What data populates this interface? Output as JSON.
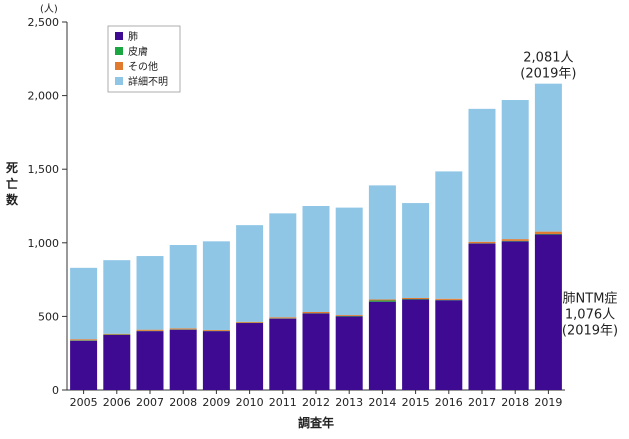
{
  "chart_data": {
    "type": "bar",
    "stacked": true,
    "categories": [
      "2005",
      "2006",
      "2007",
      "2008",
      "2009",
      "2010",
      "2011",
      "2012",
      "2013",
      "2014",
      "2015",
      "2016",
      "2017",
      "2018",
      "2019"
    ],
    "series": [
      {
        "name": "肺",
        "color": "#3d0a91",
        "values": [
          335,
          375,
          400,
          410,
          400,
          455,
          485,
          520,
          500,
          600,
          615,
          610,
          995,
          1010,
          1057
        ]
      },
      {
        "name": "皮膚",
        "color": "#1aa640",
        "values": [
          3,
          2,
          2,
          2,
          2,
          2,
          2,
          2,
          3,
          8,
          3,
          2,
          2,
          3,
          3
        ]
      },
      {
        "name": "その他",
        "color": "#e07a2e",
        "values": [
          7,
          5,
          8,
          7,
          6,
          6,
          7,
          8,
          6,
          7,
          7,
          8,
          10,
          12,
          16
        ]
      },
      {
        "name": "詳細不明",
        "color": "#8fc6e6",
        "values": [
          485,
          500,
          500,
          566,
          602,
          657,
          706,
          720,
          730,
          775,
          645,
          865,
          903,
          945,
          1005
        ]
      }
    ],
    "ylabel": "死亡数",
    "xlabel": "調査年",
    "yunit": "(人)",
    "ylim": [
      0,
      2500
    ],
    "yticks": [
      0,
      500,
      1000,
      1500,
      2000,
      2500
    ],
    "ytick_labels": [
      "0",
      "500",
      "1,000",
      "1,500",
      "2,000",
      "2,500"
    ],
    "grid": false,
    "legend_position": "top-left",
    "annotations": [
      {
        "lines": [
          "2,081人",
          "(2019年)"
        ],
        "anchor": "2019-top"
      },
      {
        "lines": [
          "肺NTM症",
          "1,076人",
          "(2019年)"
        ],
        "anchor": "2019-lung"
      }
    ]
  }
}
